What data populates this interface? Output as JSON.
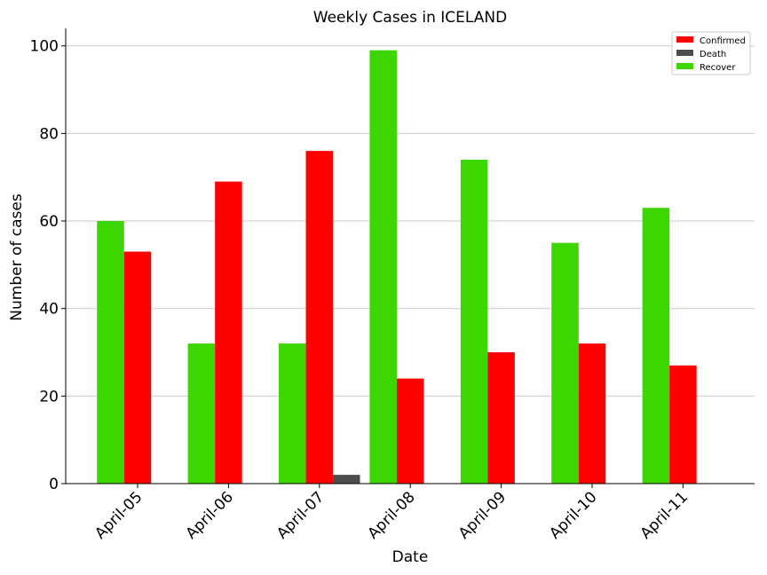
{
  "chart_data": {
    "type": "bar",
    "title": "Weekly Cases in ICELAND",
    "xlabel": "Date",
    "ylabel": "Number of cases",
    "categories": [
      "April-05",
      "April-06",
      "April-07",
      "April-08",
      "April-09",
      "April-10",
      "April-11"
    ],
    "series": [
      {
        "name": "Recover",
        "color": "#3dd600",
        "values": [
          60,
          32,
          32,
          99,
          74,
          55,
          63
        ]
      },
      {
        "name": "Confirmed",
        "color": "#ff0000",
        "values": [
          53,
          69,
          76,
          24,
          30,
          32,
          27
        ]
      },
      {
        "name": "Death",
        "color": "#4d4d4d",
        "values": [
          0,
          0,
          2,
          0,
          0,
          0,
          0
        ]
      }
    ],
    "legend_order": [
      "Confirmed",
      "Death",
      "Recover"
    ],
    "yticks": [
      0,
      20,
      40,
      60,
      80,
      100
    ],
    "ylim": [
      0,
      104
    ],
    "grid": "horizontal",
    "legend_position": "top-right"
  }
}
